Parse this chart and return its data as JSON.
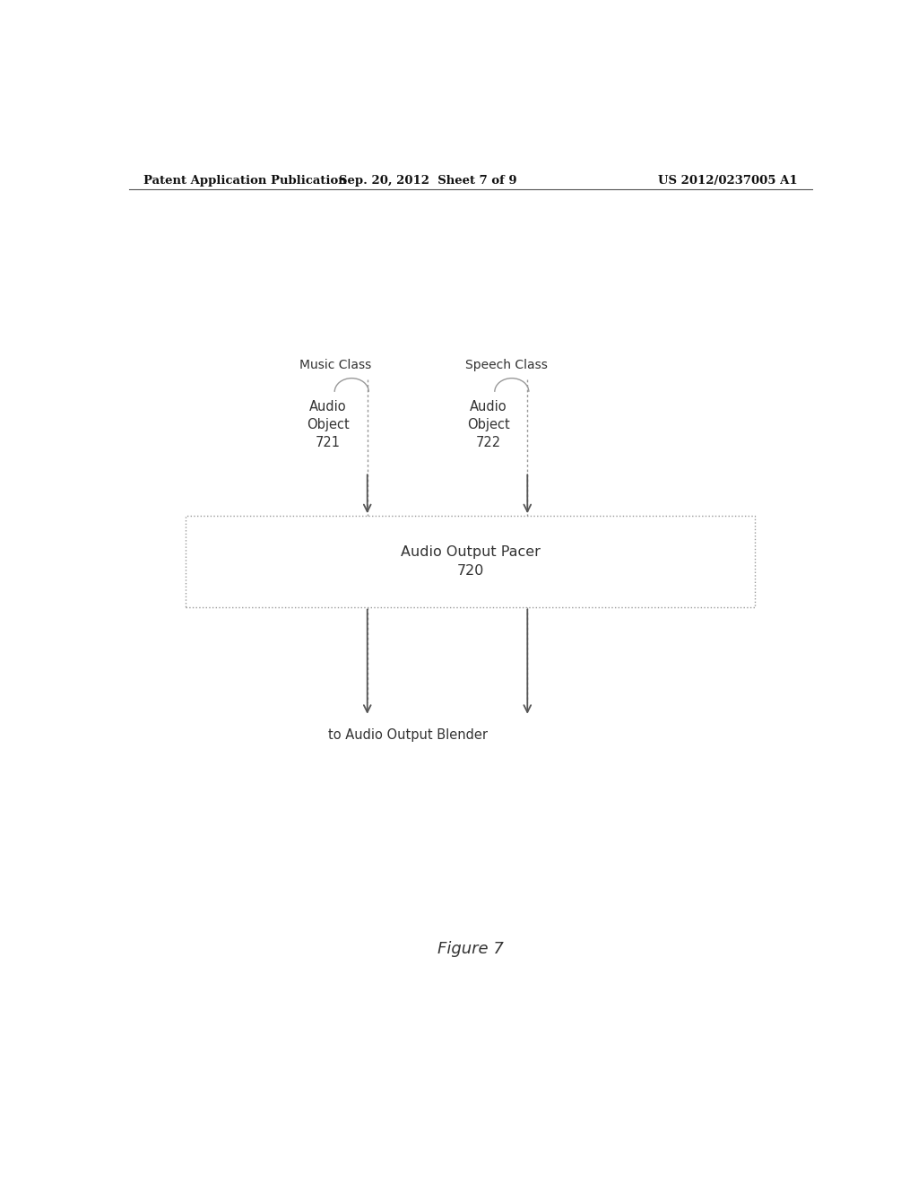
{
  "background_color": "#ffffff",
  "header_left": "Patent Application Publication",
  "header_center": "Sep. 20, 2012  Sheet 7 of 9",
  "header_right": "US 2012/0237005 A1",
  "figure_label": "Figure 7",
  "music_class_label": "Music Class",
  "speech_class_label": "Speech Class",
  "audio_obj1_label": "Audio\nObject\n721",
  "audio_obj2_label": "Audio\nObject\n722",
  "pacer_label": "Audio Output Pacer\n720",
  "blender_label": "to Audio Output Blender",
  "line_color": "#999999",
  "text_color": "#333333",
  "arrow_color": "#555555"
}
